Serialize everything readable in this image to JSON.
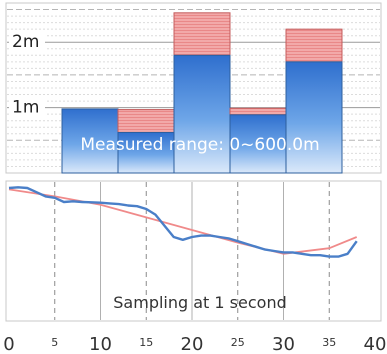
{
  "chart_data": [
    {
      "type": "bar",
      "y_unit": "m",
      "ylim": [
        0,
        2.6
      ],
      "y_ticks": [
        {
          "value": 1,
          "label": "1m"
        },
        {
          "value": 2,
          "label": "2m"
        }
      ],
      "grid": "dashed horizontal",
      "annotation": "Measured range: 0~600.0m",
      "series": [
        {
          "values": [
            0.98,
            0.62,
            1.8,
            0.89,
            1.7
          ],
          "color": "#3b7fd9"
        },
        {
          "values": [
            0,
            0.35,
            0.65,
            0.1,
            0.5
          ],
          "color": "#f0a0a0"
        }
      ],
      "series_note": "stacked: blue measured value, red band above"
    },
    {
      "type": "line",
      "xlim": [
        0,
        40
      ],
      "x_ticks_major": [
        0,
        10,
        20,
        30,
        40
      ],
      "x_ticks_minor": [
        5,
        15,
        25,
        35
      ],
      "grid": "dashed vertical",
      "annotation": "Sampling at 1 second",
      "series": [
        {
          "color": "#4a7fc8",
          "x": [
            0,
            1,
            2,
            3,
            4,
            5,
            6,
            7,
            8,
            9,
            10,
            11,
            12,
            13,
            14,
            15,
            16,
            17,
            18,
            19,
            20,
            21,
            22,
            23,
            24,
            25,
            26,
            27,
            28,
            29,
            30,
            31,
            32,
            33,
            34,
            35,
            36,
            37,
            38
          ],
          "y": [
            95,
            95.5,
            95,
            92,
            89,
            88,
            85,
            85.5,
            85,
            84.8,
            84.5,
            84,
            83.5,
            82.5,
            82,
            80,
            76,
            68,
            60,
            58,
            60,
            61,
            61,
            60,
            59,
            57,
            55,
            53,
            51,
            50,
            49,
            49,
            48,
            47,
            47,
            46,
            46,
            48,
            57
          ]
        },
        {
          "color": "#f08a8a",
          "x": [
            0,
            5,
            10,
            15,
            20,
            25,
            30,
            35,
            38
          ],
          "y": [
            94,
            89,
            83,
            74,
            65,
            56,
            48,
            52,
            60
          ]
        }
      ]
    }
  ],
  "x_axis": {
    "major_labels": [
      "0",
      "10",
      "20",
      "30",
      "40"
    ],
    "minor_labels": [
      "5",
      "15",
      "25",
      "35"
    ]
  }
}
